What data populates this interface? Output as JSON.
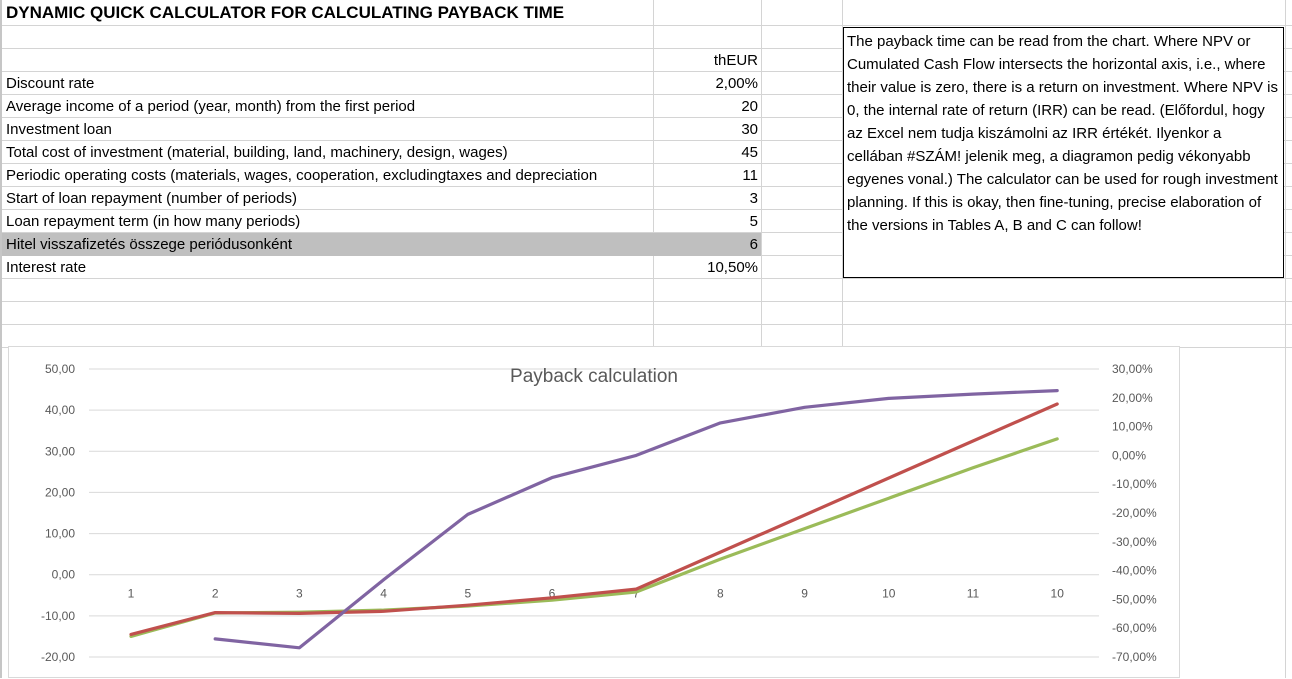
{
  "sheet": {
    "title": "DYNAMIC QUICK CALCULATOR FOR CALCULATING PAYBACK TIME",
    "unit_header": "thEUR",
    "rows": [
      {
        "label": "Discount rate",
        "value": "2,00%"
      },
      {
        "label": "Average income of a period (year, month) from the first period",
        "value": "20"
      },
      {
        "label": "Investment loan",
        "value": "30"
      },
      {
        "label": "Total cost of investment (material, building, land, machinery, design, wages)",
        "value": "45"
      },
      {
        "label": "Periodic operating costs (materials, wages, cooperation, excludingtaxes and depreciation",
        "value": "11"
      },
      {
        "label": "Start of loan repayment (number of periods)",
        "value": "3"
      },
      {
        "label": "Loan repayment term (in how many periods)",
        "value": "5"
      },
      {
        "label": "Hitel visszafizetés összege periódusonként",
        "value": "6"
      },
      {
        "label": "Interest rate",
        "value": "10,50%"
      }
    ],
    "highlight_color": "#bfbfbf"
  },
  "note": {
    "text": "The payback time can be read from the chart. Where NPV or Cumulated Cash Flow intersects the horizontal axis, i.e., where their value is zero, there is a return on investment. Where NPV is 0, the internal rate of return (IRR) can be read. (Előfordul, hogy az Excel nem tudja kiszámolni az IRR értékét. Ilyenkor a cellában #SZÁM! jelenik meg, a diagramon pedig vékonyabb egyenes vonal.) The calculator can be used for rough investment planning. If this is okay, then fine-tuning, precise elaboration of the versions in Tables A, B and C can follow!"
  },
  "chart_data": {
    "type": "line",
    "title": "Payback calculation",
    "categories": [
      "1",
      "2",
      "3",
      "4",
      "5",
      "6",
      "7",
      "8",
      "9",
      "10",
      "11",
      "10"
    ],
    "ylim": [
      -20,
      50
    ],
    "yticks": [
      "50,00",
      "40,00",
      "30,00",
      "20,00",
      "10,00",
      "0,00",
      "-10,00",
      "-20,00"
    ],
    "y2lim": [
      -70,
      30
    ],
    "y2ticks": [
      "30,00%",
      "20,00%",
      "10,00%",
      "0,00%",
      "-10,00%",
      "-20,00%",
      "-30,00%",
      "-40,00%",
      "-50,00%",
      "-60,00%",
      "-70,00%"
    ],
    "grid": true,
    "legend": "none",
    "series": [
      {
        "color": "#9bbb59",
        "axis": "left",
        "values": [
          -15,
          -9.3,
          -9.1,
          -8.6,
          -7.6,
          -6.2,
          -4.2,
          3.8,
          11.2,
          18.6,
          26,
          33
        ]
      },
      {
        "color": "#c0504d",
        "axis": "left",
        "values": [
          -14.5,
          -9.2,
          -9.4,
          -8.9,
          -7.4,
          -5.6,
          -3.5,
          5.5,
          14.5,
          23.5,
          32.5,
          41.5
        ]
      },
      {
        "color": "#8064a2",
        "axis": "right",
        "values": [
          null,
          -63.7,
          -66.8,
          -43.2,
          -20.5,
          -7.7,
          0,
          11.3,
          16.7,
          19.8,
          21.3,
          22.5
        ]
      }
    ]
  }
}
